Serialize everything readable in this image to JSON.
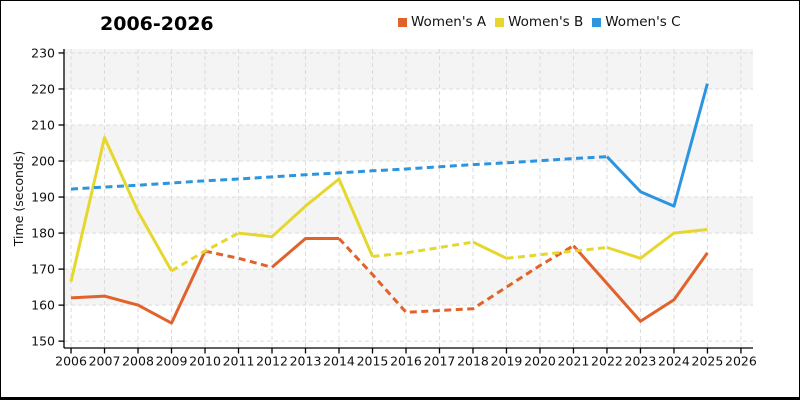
{
  "chart_data": {
    "type": "line",
    "title": "2006-2026",
    "xlabel": "",
    "ylabel": "Time (seconds)",
    "x": [
      2006,
      2007,
      2008,
      2009,
      2010,
      2011,
      2012,
      2013,
      2014,
      2015,
      2016,
      2017,
      2018,
      2019,
      2020,
      2021,
      2022,
      2023,
      2024,
      2025
    ],
    "x_ticks": [
      2006,
      2007,
      2008,
      2009,
      2010,
      2011,
      2012,
      2013,
      2014,
      2015,
      2016,
      2017,
      2018,
      2019,
      2020,
      2021,
      2022,
      2023,
      2024,
      2025,
      2026
    ],
    "y_ticks": [
      150,
      160,
      170,
      180,
      190,
      200,
      210,
      220,
      230
    ],
    "xlim": [
      2005.79,
      2026.36
    ],
    "ylim": [
      148.1,
      231.1
    ],
    "grid": true,
    "legend_position": "top",
    "band_color": "#f4f4f4",
    "grid_color": "#dcdcdc",
    "axis_color": "#000000",
    "background_bands": [
      [
        160,
        170
      ],
      [
        180,
        190
      ],
      [
        200,
        210
      ],
      [
        220,
        231.1
      ]
    ],
    "series": [
      {
        "name": "Women's A",
        "color": "#e2622b",
        "values": [
          162,
          162.5,
          160,
          155,
          175,
          173,
          170.5,
          178.5,
          178.5,
          168.5,
          158,
          158.5,
          159,
          165,
          171,
          176.5,
          166,
          155.5,
          161.5,
          174.5
        ],
        "segment_styles": [
          "solid",
          "solid",
          "solid",
          "solid",
          "dashed",
          "dashed",
          "solid",
          "solid",
          "dashed",
          "dashed",
          "dashed",
          "dashed",
          "dashed",
          "dashed",
          "dashed",
          "solid",
          "solid",
          "solid",
          "solid"
        ]
      },
      {
        "name": "Women's B",
        "color": "#e6d72f",
        "values": [
          166.5,
          206.5,
          186,
          169.5,
          175,
          180,
          179,
          187.5,
          195,
          173.5,
          174.5,
          176,
          177.5,
          173,
          174,
          175,
          176,
          173,
          180,
          181
        ],
        "segment_styles": [
          "solid",
          "solid",
          "solid",
          "dashed",
          "dashed",
          "solid",
          "solid",
          "solid",
          "solid",
          "dashed",
          "dashed",
          "dashed",
          "solid",
          "dashed",
          "dashed",
          "dashed",
          "solid",
          "solid",
          "solid"
        ]
      },
      {
        "name": "Women's C",
        "color": "#2d95e0",
        "values": [
          192.2,
          192.8,
          193.3,
          193.9,
          194.5,
          195,
          195.6,
          196.2,
          196.7,
          197.3,
          197.8,
          198.4,
          199,
          199.5,
          200.1,
          200.7,
          201.2,
          191.5,
          187.5,
          221.5
        ],
        "segment_styles": [
          "dashed",
          "dashed",
          "dashed",
          "dashed",
          "dashed",
          "dashed",
          "dashed",
          "dashed",
          "dashed",
          "dashed",
          "dashed",
          "dashed",
          "dashed",
          "dashed",
          "dashed",
          "dashed",
          "solid",
          "solid",
          "solid"
        ]
      }
    ]
  }
}
